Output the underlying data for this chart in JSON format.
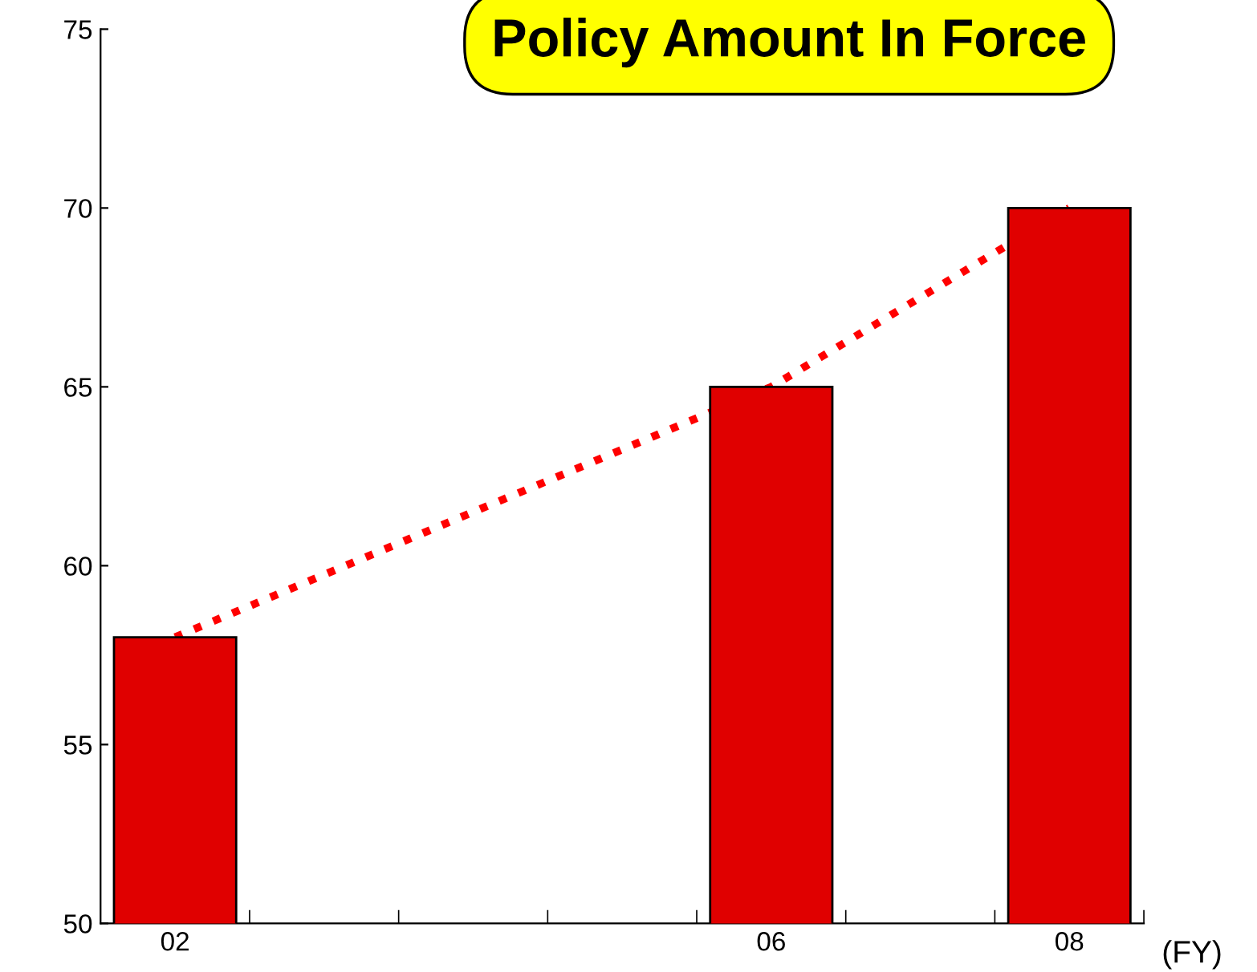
{
  "chart_data": {
    "type": "bar",
    "title": "Policy Amount In Force",
    "xlabel": "(FY)",
    "categories": [
      "02",
      null,
      null,
      null,
      "06",
      null,
      "08"
    ],
    "series": [
      {
        "color": "#e00000",
        "values": [
          58,
          null,
          null,
          null,
          65,
          null,
          70
        ]
      },
      {
        "type": "line",
        "color": "#ff0000",
        "line_style": "dotted",
        "values": [
          58,
          null,
          null,
          null,
          65,
          null,
          70
        ]
      }
    ],
    "ylim": [
      50,
      75
    ],
    "yticks": [
      50,
      55,
      60,
      65,
      70,
      75
    ],
    "grid": false
  }
}
